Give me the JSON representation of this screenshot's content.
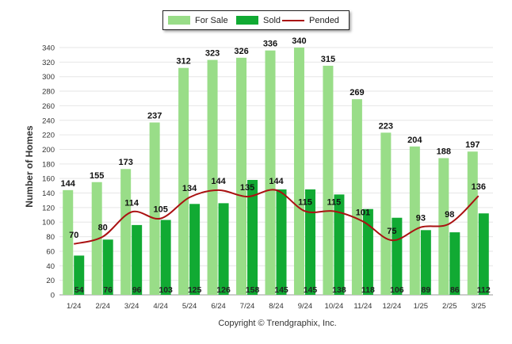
{
  "chart_data": {
    "type": "bar",
    "categories": [
      "1/24",
      "2/24",
      "3/24",
      "4/24",
      "5/24",
      "6/24",
      "7/24",
      "8/24",
      "9/24",
      "10/24",
      "11/24",
      "12/24",
      "1/25",
      "2/25",
      "3/25"
    ],
    "series": [
      {
        "name": "For Sale",
        "type": "bar",
        "color": "#99dd88",
        "values": [
          144,
          155,
          173,
          237,
          312,
          323,
          326,
          336,
          340,
          315,
          269,
          223,
          204,
          188,
          197
        ]
      },
      {
        "name": "Sold",
        "type": "bar",
        "color": "#11aa33",
        "values": [
          54,
          76,
          96,
          103,
          125,
          126,
          158,
          145,
          145,
          138,
          118,
          106,
          89,
          86,
          112
        ]
      },
      {
        "name": "Pended",
        "type": "line",
        "color": "#aa1111",
        "values": [
          70,
          80,
          114,
          105,
          134,
          144,
          135,
          144,
          115,
          115,
          101,
          75,
          93,
          98,
          136
        ]
      }
    ],
    "title": "",
    "xlabel": "",
    "ylabel": "Number of Homes",
    "ylim": [
      0,
      340
    ],
    "ytick_step": 20,
    "grid": true,
    "legend": "top-center"
  },
  "footer": {
    "copyright": "Copyright © Trendgraphix, Inc."
  }
}
